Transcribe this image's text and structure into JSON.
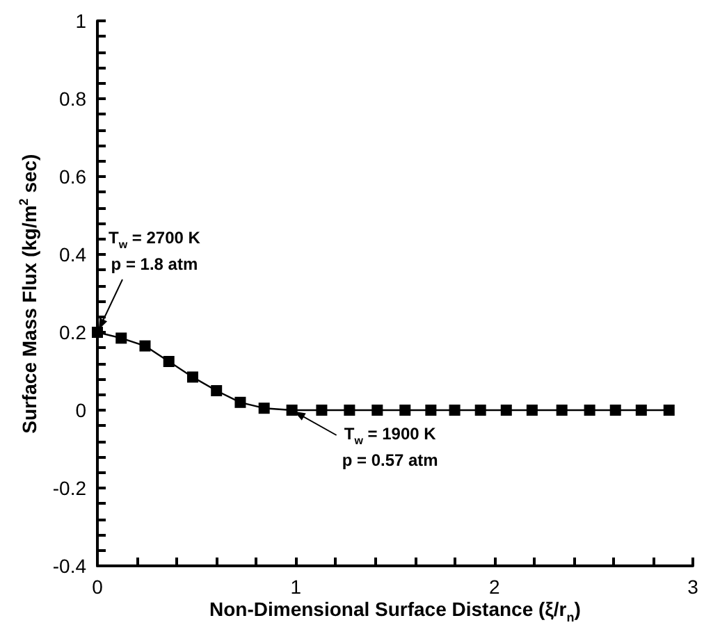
{
  "chart_data": {
    "type": "line",
    "xlabel": "Non-Dimensional Surface Distance (ξ/r$_{n}$)",
    "ylabel": "Surface Mass Flux (kg/m$^{2}$ sec)",
    "x": [
      0,
      0.12,
      0.24,
      0.36,
      0.48,
      0.6,
      0.72,
      0.84,
      0.98,
      1.13,
      1.27,
      1.41,
      1.55,
      1.68,
      1.8,
      1.93,
      2.06,
      2.19,
      2.34,
      2.48,
      2.61,
      2.74,
      2.88
    ],
    "series": [
      {
        "color": "#000000",
        "values": [
          0.2,
          0.185,
          0.165,
          0.125,
          0.085,
          0.05,
          0.02,
          0.005,
          0,
          0,
          0,
          0,
          0,
          0,
          0,
          0,
          0,
          0,
          0,
          0,
          0,
          0,
          0
        ]
      }
    ],
    "xlim": [
      0,
      3
    ],
    "xticks": [
      0,
      1,
      2,
      3
    ],
    "ylim": [
      -0.4,
      1
    ],
    "yticks": [
      -0.4,
      -0.2,
      0,
      0.2,
      0.4,
      0.6,
      0.8,
      1
    ],
    "marker": "square",
    "line_style": "solid",
    "annotations": [
      {
        "text": "T$_{w}$ = 2700 K\np = 1.8 atm",
        "x": 0,
        "y": 0.2
      },
      {
        "text": "T$_{w}$ = 1900 K\np = 0.57 atm",
        "x": 0.98,
        "y": 0
      }
    ]
  }
}
